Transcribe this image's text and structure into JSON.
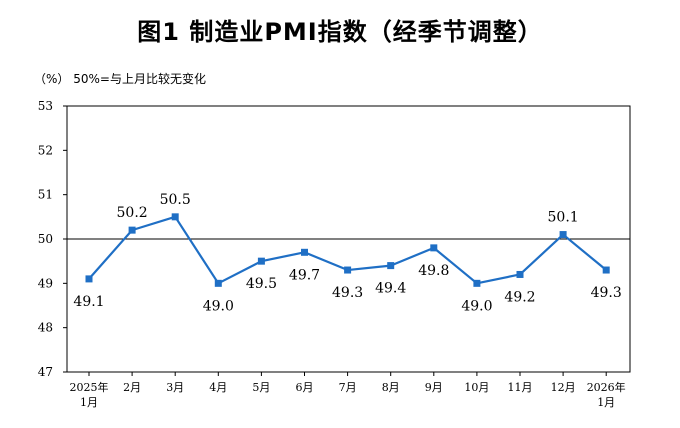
{
  "title": "图1  制造业PMI指数（经季节调整）",
  "note": "（%）  50%=与上月比较无变化",
  "chart_data": {
    "type": "line",
    "title": "图1  制造业PMI指数（经季节调整）",
    "ylabel": "（%）",
    "annotation": "50%=与上月比较无变化",
    "ylim": [
      47,
      53
    ],
    "yticks": [
      "47",
      "48",
      "49",
      "50",
      "51",
      "52",
      "53"
    ],
    "reference_line": 50,
    "categories": [
      [
        "2025年",
        "1月"
      ],
      [
        "2月"
      ],
      [
        "3月"
      ],
      [
        "4月"
      ],
      [
        "5月"
      ],
      [
        "6月"
      ],
      [
        "7月"
      ],
      [
        "8月"
      ],
      [
        "9月"
      ],
      [
        "10月"
      ],
      [
        "11月"
      ],
      [
        "12月"
      ],
      [
        "2026年",
        "1月"
      ]
    ],
    "series": [
      {
        "values": [
          49.1,
          50.2,
          50.5,
          49.0,
          49.5,
          49.7,
          49.3,
          49.4,
          49.8,
          49.0,
          49.2,
          50.1,
          49.3
        ],
        "labels": [
          "49.1",
          "50.2",
          "50.5",
          "49.0",
          "49.5",
          "49.7",
          "49.3",
          "49.4",
          "49.8",
          "49.0",
          "49.2",
          "50.1",
          "49.3"
        ],
        "label_position": [
          "below",
          "above",
          "above",
          "below",
          "below",
          "below",
          "below",
          "below",
          "below",
          "below",
          "below",
          "above",
          "below"
        ],
        "color": "#1f6fc5"
      }
    ],
    "grid": false,
    "legend": "none"
  }
}
